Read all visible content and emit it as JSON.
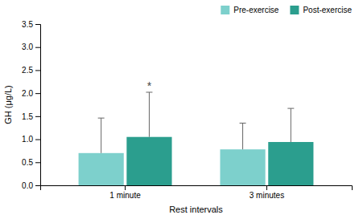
{
  "chart_data": {
    "type": "bar",
    "categories": [
      "1 minute",
      "3 minutes"
    ],
    "series": [
      {
        "name": "Pre-exercise",
        "color": "#7DD0CC",
        "values": [
          0.7,
          0.78
        ],
        "errors": [
          0.76,
          0.57
        ]
      },
      {
        "name": "Post-exercise",
        "color": "#2B9E8E",
        "values": [
          1.05,
          0.94
        ],
        "errors": [
          0.97,
          0.73
        ]
      }
    ],
    "xlabel": "Rest intervals",
    "ylabel": "GH (μg/L)",
    "ylim": [
      0,
      3.5
    ],
    "yticks": [
      {
        "value": 0.0,
        "label": "0.0"
      },
      0.5,
      {
        "value": 1.0,
        "label": "1.0"
      },
      1.5,
      {
        "value": 2.0,
        "label": "2.0"
      },
      2.5,
      {
        "value": 3.0,
        "label": "3.0"
      },
      3.5
    ],
    "annotations": [
      {
        "text": "*",
        "category": "1 minute",
        "series": "Post-exercise"
      }
    ],
    "legend": "upper right",
    "grid": false
  }
}
